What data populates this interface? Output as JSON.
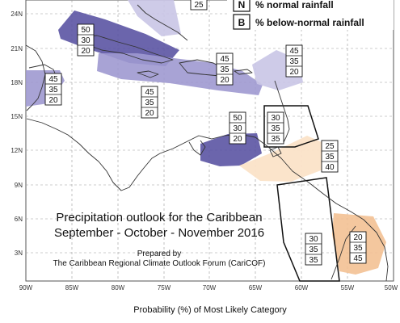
{
  "map": {
    "title_line1": "Precipitation outlook for the Caribbean",
    "title_line2": "September - October - November 2016",
    "prepared_by": "Prepared by",
    "prepared_org": "The Caribbean Regional Climate Outlook Forum (CariCOF)",
    "caption": "Probability (%) of Most Likely Category",
    "legend": [
      {
        "key": "N",
        "text": "% normal rainfall"
      },
      {
        "key": "B",
        "text": "% below-normal rainfall"
      }
    ],
    "lat_ticks": [
      "24N",
      "21N",
      "18N",
      "15N",
      "12N",
      "9N",
      "6N",
      "3N"
    ],
    "lon_ticks": [
      "90W",
      "85W",
      "80W",
      "75W",
      "70W",
      "65W",
      "60W",
      "55W",
      "50W"
    ],
    "probability_boxes": [
      {
        "values": [
          "25"
        ]
      },
      {
        "values": [
          "50",
          "30",
          "20"
        ]
      },
      {
        "values": [
          "45",
          "35",
          "20"
        ]
      },
      {
        "values": [
          "45",
          "35",
          "20"
        ]
      },
      {
        "values": [
          "45",
          "35",
          "20"
        ]
      },
      {
        "values": [
          "45",
          "35",
          "20"
        ]
      },
      {
        "values": [
          "50",
          "30",
          "20"
        ]
      },
      {
        "values": [
          "30",
          "35",
          "35"
        ]
      },
      {
        "values": [
          "25",
          "35",
          "40"
        ]
      },
      {
        "values": [
          "30",
          "35",
          "35"
        ]
      },
      {
        "values": [
          "20",
          "35",
          "45"
        ]
      }
    ],
    "colors": {
      "dark_purple": "#5b54a3",
      "mid_purple": "#9f99d0",
      "light_purple": "#c9c5e6",
      "light_orange": "#fbe3c8",
      "orange": "#f3c194"
    }
  }
}
